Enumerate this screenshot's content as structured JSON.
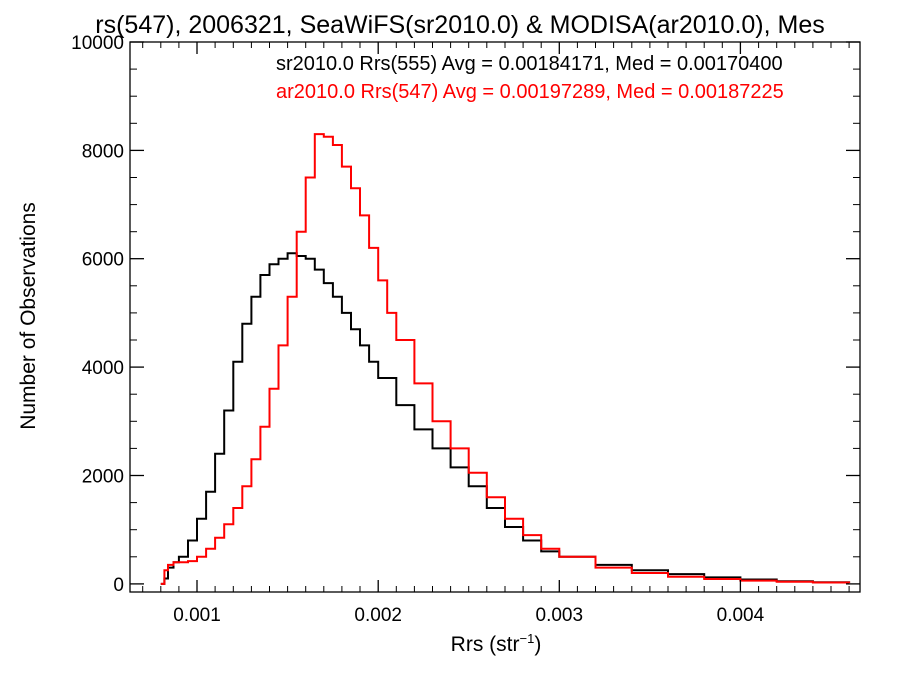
{
  "chart_data": {
    "type": "line",
    "title": "rs(547), 2006321, SeaWiFS(sr2010.0) & MODISA(ar2010.0), Mes",
    "xlabel": "Rrs (str",
    "xlabel_sup": "−1",
    "xlabel_close": ")",
    "ylabel": "Number of Observations",
    "xlim": [
      0.00063,
      0.00466
    ],
    "ylim": [
      -150,
      10000
    ],
    "x_ticks": [
      0.001,
      0.002,
      0.003,
      0.004
    ],
    "x_tick_labels": [
      "0.001",
      "0.002",
      "0.003",
      "0.004"
    ],
    "y_ticks": [
      0,
      2000,
      4000,
      6000,
      8000,
      10000
    ],
    "y_tick_labels": [
      "0",
      "2000",
      "4000",
      "6000",
      "8000",
      "10000"
    ],
    "grid": false,
    "legend_position": "top-right",
    "series": [
      {
        "name": "sr2010.0 Rrs(555) Avg = 0.00184171, Med = 0.00170400",
        "color": "#000000",
        "x": [
          0.0008,
          0.00082,
          0.00084,
          0.00087,
          0.0009,
          0.00095,
          0.001,
          0.00105,
          0.0011,
          0.00115,
          0.0012,
          0.00125,
          0.0013,
          0.00135,
          0.0014,
          0.00145,
          0.0015,
          0.00155,
          0.0016,
          0.00165,
          0.0017,
          0.00175,
          0.0018,
          0.00185,
          0.0019,
          0.00195,
          0.002,
          0.0021,
          0.0022,
          0.0023,
          0.0024,
          0.0025,
          0.0026,
          0.0027,
          0.0028,
          0.0029,
          0.003,
          0.0032,
          0.0034,
          0.0036,
          0.0038,
          0.004,
          0.0042,
          0.0044,
          0.0046
        ],
        "y": [
          0,
          100,
          300,
          400,
          500,
          800,
          1200,
          1700,
          2400,
          3200,
          4100,
          4800,
          5300,
          5700,
          5900,
          6000,
          6100,
          6050,
          6000,
          5800,
          5550,
          5300,
          5000,
          4700,
          4400,
          4100,
          3800,
          3300,
          2850,
          2500,
          2150,
          1800,
          1400,
          1050,
          800,
          600,
          500,
          350,
          250,
          180,
          120,
          80,
          50,
          30,
          20
        ]
      },
      {
        "name": "ar2010.0 Rrs(547) Avg = 0.00197289, Med = 0.00187225",
        "color": "#ff0000",
        "x": [
          0.0008,
          0.00082,
          0.00084,
          0.00087,
          0.0009,
          0.00095,
          0.001,
          0.00105,
          0.0011,
          0.00115,
          0.0012,
          0.00125,
          0.0013,
          0.00135,
          0.0014,
          0.00145,
          0.0015,
          0.00155,
          0.0016,
          0.00165,
          0.0017,
          0.00175,
          0.0018,
          0.00185,
          0.0019,
          0.00195,
          0.002,
          0.00205,
          0.0021,
          0.0022,
          0.0023,
          0.0024,
          0.0025,
          0.0026,
          0.0027,
          0.0028,
          0.0029,
          0.003,
          0.0032,
          0.0034,
          0.0036,
          0.0038,
          0.004,
          0.0042,
          0.0044,
          0.0046
        ],
        "y": [
          0,
          250,
          350,
          400,
          400,
          420,
          500,
          650,
          850,
          1100,
          1400,
          1800,
          2300,
          2900,
          3600,
          4400,
          5300,
          6500,
          7500,
          8300,
          8250,
          8100,
          7700,
          7300,
          6800,
          6200,
          5600,
          5000,
          4500,
          3700,
          3000,
          2500,
          2050,
          1600,
          1200,
          900,
          650,
          500,
          300,
          200,
          130,
          90,
          60,
          40,
          25,
          15
        ]
      }
    ]
  }
}
